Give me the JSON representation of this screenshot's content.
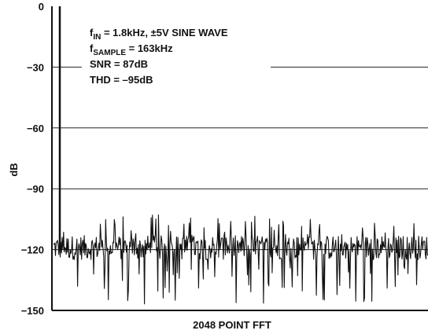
{
  "chart_data": {
    "type": "line",
    "xlabel": "2048 POINT FFT",
    "ylabel": "dB",
    "ylim": [
      -150,
      0
    ],
    "yticks": [
      0,
      -30,
      -60,
      -90,
      -120,
      -150
    ],
    "grid": "horizontal",
    "annotations": [
      {
        "prefix": "f",
        "sub": "IN",
        "text": " = 1.8kHz, ±5V SINE WAVE"
      },
      {
        "prefix": "f",
        "sub": "SAMPLE",
        "text": " = 163kHz"
      },
      {
        "prefix": "",
        "sub": "",
        "text": "SNR = 87dB"
      },
      {
        "prefix": "",
        "sub": "",
        "text": "THD = –95dB"
      }
    ],
    "series": [
      {
        "fundamental_bin": 22,
        "fundamental_level_db": 0,
        "noise_floor_db": -119,
        "noise_min_db": -147,
        "noise_max_db": -96,
        "bins": 1024
      }
    ]
  }
}
